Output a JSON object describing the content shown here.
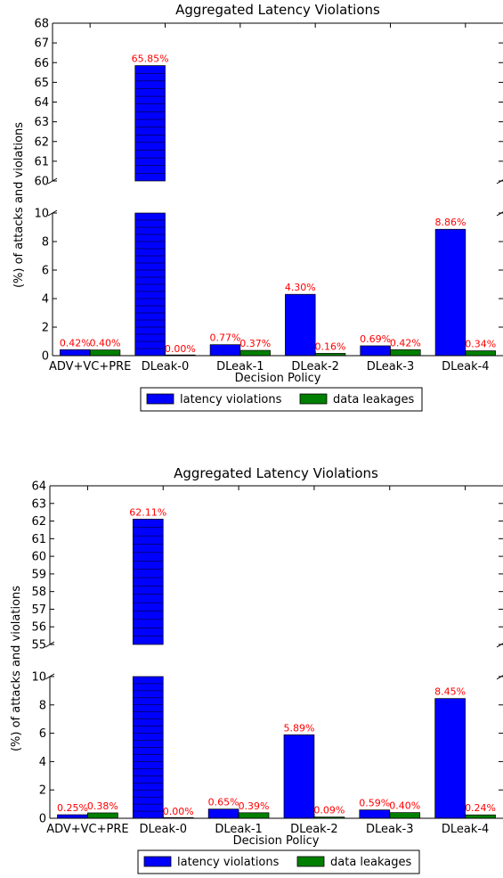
{
  "chart_data": [
    {
      "type": "bar",
      "broken_axis": true,
      "title": "Aggregated Latency Violations",
      "xlabel": "Decision Policy",
      "ylabel": "(%) of attacks and violations",
      "categories": [
        "ADV+VC+PRE",
        "DLeak-0",
        "DLeak-1",
        "DLeak-2",
        "DLeak-3",
        "DLeak-4"
      ],
      "series": [
        {
          "name": "latency violations",
          "color": "#0000ff",
          "values": [
            0.42,
            65.85,
            0.77,
            4.3,
            0.69,
            8.86
          ],
          "labels": [
            "0.42%",
            "65.85%",
            "0.77%",
            "4.30%",
            "0.69%",
            "8.86%"
          ]
        },
        {
          "name": "data leakages",
          "color": "#007f00",
          "values": [
            0.4,
            0.0,
            0.37,
            0.16,
            0.42,
            0.34
          ],
          "labels": [
            "0.40%",
            "0.00%",
            "0.37%",
            "0.16%",
            "0.42%",
            "0.34%"
          ]
        }
      ],
      "upper_ylim": [
        60,
        68
      ],
      "upper_yticks": [
        "60",
        "61",
        "62",
        "63",
        "64",
        "65",
        "66",
        "67",
        "68"
      ],
      "lower_ylim": [
        0,
        10
      ],
      "lower_yticks": [
        "0",
        "2",
        "4",
        "6",
        "8",
        "10"
      ],
      "grid": false,
      "legend_position": "bottom-center"
    },
    {
      "type": "bar",
      "broken_axis": true,
      "title": "Aggregated Latency Violations",
      "xlabel": "Decision Policy",
      "ylabel": "(%) of attacks and violations",
      "categories": [
        "ADV+VC+PRE",
        "DLeak-0",
        "DLeak-1",
        "DLeak-2",
        "DLeak-3",
        "DLeak-4"
      ],
      "series": [
        {
          "name": "latency violations",
          "color": "#0000ff",
          "values": [
            0.25,
            62.11,
            0.65,
            5.89,
            0.59,
            8.45
          ],
          "labels": [
            "0.25%",
            "62.11%",
            "0.65%",
            "5.89%",
            "0.59%",
            "8.45%"
          ]
        },
        {
          "name": "data leakages",
          "color": "#007f00",
          "values": [
            0.38,
            0.0,
            0.39,
            0.09,
            0.4,
            0.24
          ],
          "labels": [
            "0.38%",
            "0.00%",
            "0.39%",
            "0.09%",
            "0.40%",
            "0.24%"
          ]
        }
      ],
      "upper_ylim": [
        55,
        64
      ],
      "upper_yticks": [
        "55",
        "56",
        "57",
        "58",
        "59",
        "60",
        "61",
        "62",
        "63",
        "64"
      ],
      "lower_ylim": [
        0,
        10
      ],
      "lower_yticks": [
        "0",
        "2",
        "4",
        "6",
        "8",
        "10"
      ],
      "grid": false,
      "legend_position": "bottom-center"
    }
  ]
}
